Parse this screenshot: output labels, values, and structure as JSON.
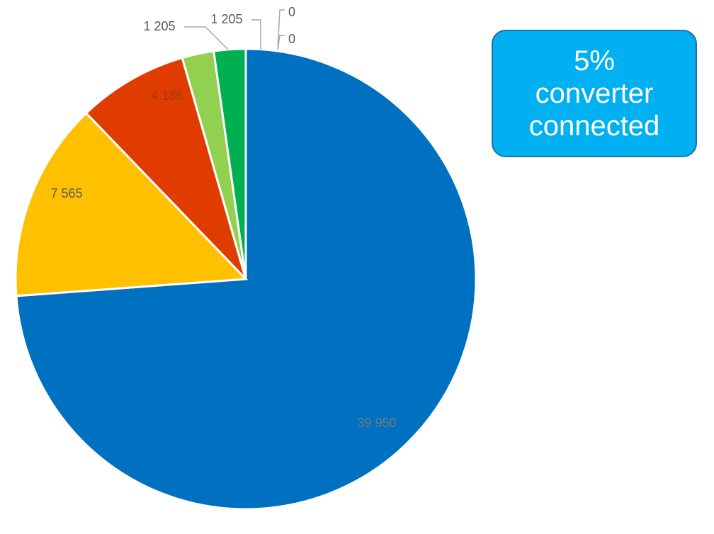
{
  "chart_data": {
    "type": "pie",
    "slices": [
      {
        "label": "0",
        "value": 0,
        "color": "#00b050"
      },
      {
        "label": "39 950",
        "value": 39950,
        "color": "#0070c0"
      },
      {
        "label": "7 565",
        "value": 7565,
        "color": "#ffc000"
      },
      {
        "label": "4 186",
        "value": 4186,
        "color": "#e03c00"
      },
      {
        "label": "1 205",
        "value": 1205,
        "color": "#92d050"
      },
      {
        "label": "1 205",
        "value": 1205,
        "color": "#00b050"
      },
      {
        "label": "0",
        "value": 0,
        "color": "#00b050"
      }
    ],
    "start_angle_deg": 0,
    "direction": "clockwise",
    "legend": "none"
  },
  "callout": {
    "line1": "5%",
    "line2": "converter",
    "line3": "connected",
    "background": "#00b0f0",
    "text_color": "#ffffff"
  }
}
